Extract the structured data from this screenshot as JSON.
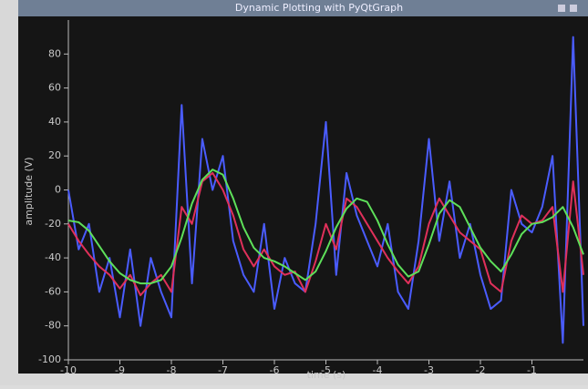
{
  "chart_data": {
    "type": "line",
    "title": "Dynamic Plotting with PyQtGraph",
    "x_label": "time (s)",
    "y_label": "amplitude (V)",
    "x": [
      -10,
      -9.8,
      -9.6,
      -9.4,
      -9.2,
      -9,
      -8.8,
      -8.6,
      -8.4,
      -8.2,
      -8,
      -7.8,
      -7.6,
      -7.4,
      -7.2,
      -7,
      -6.8,
      -6.6,
      -6.4,
      -6.2,
      -6,
      -5.8,
      -5.6,
      -5.4,
      -5.2,
      -5,
      -4.8,
      -4.6,
      -4.4,
      -4.2,
      -4,
      -3.8,
      -3.6,
      -3.4,
      -3.2,
      -3,
      -2.8,
      -2.6,
      -2.4,
      -2.2,
      -2,
      -1.8,
      -1.6,
      -1.4,
      -1.2,
      -1,
      -0.8,
      -0.6,
      -0.4,
      -0.2,
      0
    ],
    "series": [
      {
        "color": "#4a5cff",
        "values": [
          0,
          -35,
          -20,
          -60,
          -40,
          -75,
          -35,
          -80,
          -40,
          -60,
          -75,
          50,
          -55,
          30,
          0,
          20,
          -30,
          -50,
          -60,
          -20,
          -70,
          -40,
          -55,
          -60,
          -20,
          40,
          -50,
          10,
          -15,
          -30,
          -45,
          -20,
          -60,
          -70,
          -30,
          30,
          -30,
          5,
          -40,
          -20,
          -50,
          -70,
          -65,
          0,
          -20,
          -25,
          -10,
          20,
          -90,
          90,
          -80
        ]
      },
      {
        "color": "#e0305a",
        "values": [
          -20,
          -30,
          -38,
          -45,
          -50,
          -58,
          -50,
          -62,
          -55,
          -50,
          -60,
          -10,
          -20,
          5,
          10,
          0,
          -15,
          -35,
          -45,
          -35,
          -45,
          -50,
          -48,
          -60,
          -42,
          -20,
          -35,
          -5,
          -10,
          -20,
          -30,
          -40,
          -48,
          -55,
          -45,
          -20,
          -5,
          -15,
          -25,
          -30,
          -35,
          -55,
          -60,
          -30,
          -15,
          -20,
          -18,
          -10,
          -60,
          5,
          -50
        ]
      },
      {
        "color": "#5ee05a",
        "values": [
          -18,
          -19,
          -24,
          -33,
          -42,
          -49,
          -53,
          -55,
          -55,
          -53,
          -45,
          -28,
          -8,
          6,
          12,
          9,
          -5,
          -22,
          -34,
          -40,
          -42,
          -45,
          -49,
          -53,
          -48,
          -36,
          -22,
          -11,
          -5,
          -7,
          -18,
          -32,
          -44,
          -51,
          -48,
          -32,
          -14,
          -6,
          -10,
          -22,
          -34,
          -42,
          -48,
          -38,
          -26,
          -20,
          -19,
          -16,
          -10,
          -22,
          -38
        ]
      }
    ],
    "xlim": [
      -10,
      0
    ],
    "xticks": [
      -10,
      -9,
      -8,
      -7,
      -6,
      -5,
      -4,
      -3,
      -2,
      -1
    ],
    "ylim": [
      -100,
      100
    ],
    "yticks": [
      -100,
      -80,
      -60,
      -40,
      -20,
      0,
      20,
      40,
      60,
      80
    ]
  }
}
